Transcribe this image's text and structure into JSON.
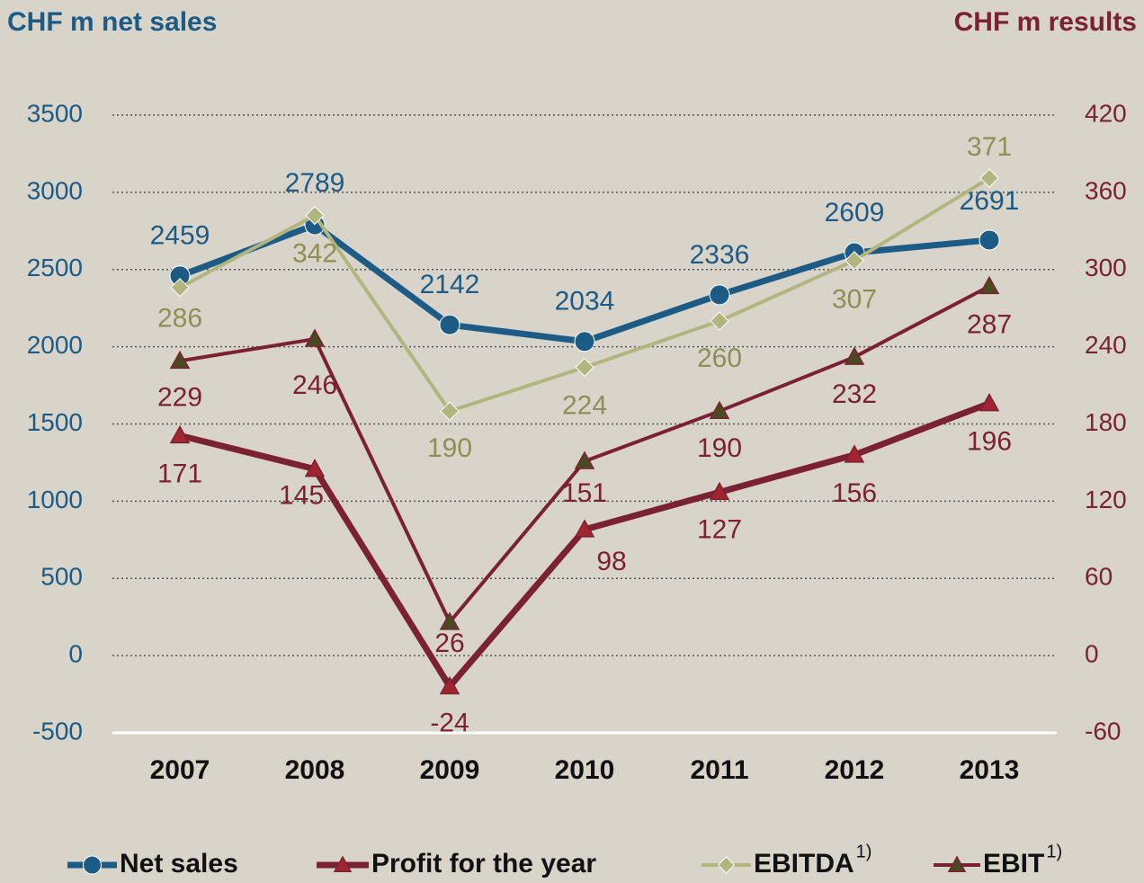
{
  "chart_data": {
    "type": "line",
    "y_label": "CHF m net sales",
    "y2_label": "CHF m results",
    "categories": [
      "2007",
      "2008",
      "2009",
      "2010",
      "2011",
      "2012",
      "2013"
    ],
    "ylim": [
      -500,
      3500
    ],
    "yticks": [
      -500,
      0,
      500,
      1000,
      1500,
      2000,
      2500,
      3000,
      3500
    ],
    "y2lim": [
      -60,
      420
    ],
    "y2ticks": [
      -60,
      0,
      60,
      120,
      180,
      240,
      300,
      360,
      420
    ],
    "grid": true,
    "legend": "bottom",
    "series": [
      {
        "name": "Net sales",
        "color": "#1b5b86",
        "marker": "circle",
        "values": [
          2459,
          2789,
          2142,
          2034,
          2336,
          2609,
          2691
        ]
      },
      {
        "name": "Profit for the year",
        "color": "#7b2232",
        "marker": "triangle",
        "axis": "y2",
        "values": [
          171,
          145,
          -24,
          98,
          127,
          156,
          196
        ]
      },
      {
        "name": "EBITDA",
        "superscript": "1)",
        "color": "#b3b57e",
        "marker": "diamond",
        "axis": "y2",
        "values": [
          286,
          342,
          190,
          224,
          260,
          307,
          371
        ]
      },
      {
        "name": "EBIT",
        "superscript": "1)",
        "color": "#7b2232",
        "marker": "triangle",
        "axis": "y2",
        "values": [
          229,
          246,
          26,
          151,
          190,
          232,
          287
        ]
      }
    ]
  }
}
